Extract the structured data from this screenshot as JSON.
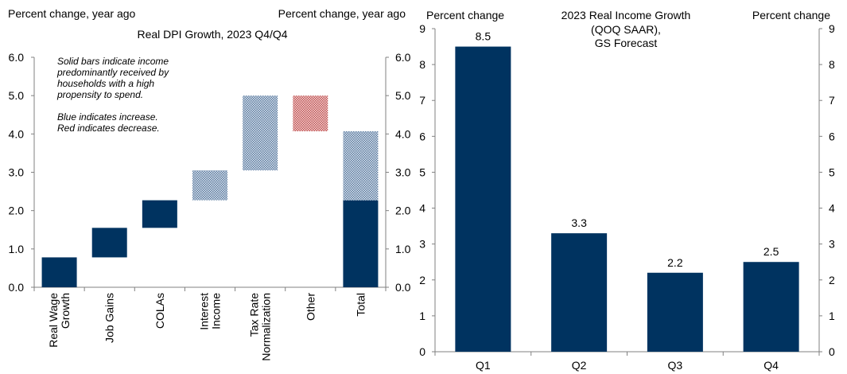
{
  "colors": {
    "navy": "#003360",
    "hatch_blue": "#5a7aa0",
    "hatch_red": "#c05050",
    "axis": "#808080"
  },
  "chart_data": [
    {
      "type": "bar",
      "subtype": "waterfall",
      "title": "Real DPI Growth, 2023 Q4/Q4",
      "left_axis_label": "Percent change, year ago",
      "right_axis_label": "Percent change, year ago",
      "ylim": [
        0,
        6
      ],
      "yticks": [
        "0.0",
        "1.0",
        "2.0",
        "3.0",
        "4.0",
        "5.0",
        "6.0"
      ],
      "annotations": [
        "Solid bars indicate income",
        "predominantly received by",
        "households with a high",
        "propensity to spend.",
        "Blue indicates increase.",
        "Red indicates decrease."
      ],
      "categories": [
        [
          "Real Wage",
          "Growth"
        ],
        [
          "Job Gains"
        ],
        [
          "COLAs"
        ],
        [
          "Interest",
          "Income"
        ],
        [
          "Tax Rate",
          "Normalization"
        ],
        [
          "Other"
        ],
        [
          "Total"
        ]
      ],
      "bars": [
        {
          "category": "Real Wage Growth",
          "start": 0.0,
          "end": 0.78,
          "style": "solid"
        },
        {
          "category": "Job Gains",
          "start": 0.78,
          "end": 1.55,
          "style": "solid"
        },
        {
          "category": "COLAs",
          "start": 1.55,
          "end": 2.27,
          "style": "solid"
        },
        {
          "category": "Interest Income",
          "start": 2.27,
          "end": 3.05,
          "style": "hatched-blue"
        },
        {
          "category": "Tax Rate Normalization",
          "start": 3.05,
          "end": 5.0,
          "style": "hatched-blue"
        },
        {
          "category": "Other",
          "start": 4.07,
          "end": 5.0,
          "style": "hatched-red"
        },
        {
          "category": "Total",
          "start": 0.0,
          "end": 2.27,
          "style": "solid"
        },
        {
          "category": "Total",
          "start": 2.27,
          "end": 4.07,
          "style": "hatched-blue"
        }
      ]
    },
    {
      "type": "bar",
      "title": [
        "2023 Real Income Growth",
        "(QOQ SAAR),",
        "GS Forecast"
      ],
      "left_axis_label": "Percent change",
      "right_axis_label": "Percent change",
      "ylim": [
        0,
        9
      ],
      "yticks": [
        "0",
        "1",
        "2",
        "3",
        "4",
        "5",
        "6",
        "7",
        "8",
        "9"
      ],
      "categories": [
        "Q1",
        "Q2",
        "Q3",
        "Q4"
      ],
      "values": [
        8.5,
        3.3,
        2.2,
        2.5
      ],
      "value_labels": [
        "8.5",
        "3.3",
        "2.2",
        "2.5"
      ]
    }
  ]
}
